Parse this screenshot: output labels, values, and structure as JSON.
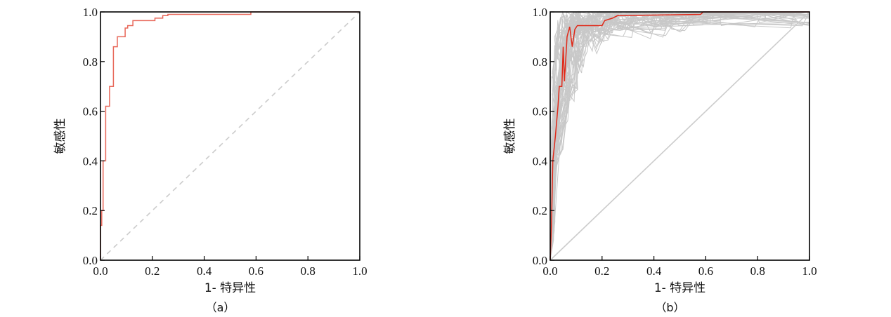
{
  "chart_data": [
    {
      "type": "line",
      "caption": "（a）",
      "xlabel": "1- 特异性",
      "ylabel": "敏感性",
      "xlim": [
        0,
        1
      ],
      "ylim": [
        0,
        1
      ],
      "xticks": [
        "0.0",
        "0.2",
        "0.4",
        "0.6",
        "0.8",
        "1.0"
      ],
      "yticks": [
        "0.0",
        "0.2",
        "0.4",
        "0.6",
        "0.8",
        "1.0"
      ],
      "grid": false,
      "legend": "none",
      "colors": {
        "roc": "#e8685a",
        "diagonal": "#cccccc",
        "axis": "#000000"
      },
      "series": [
        {
          "style": "step",
          "x": [
            0.0,
            0.0,
            0.005,
            0.005,
            0.01,
            0.01,
            0.02,
            0.02,
            0.035,
            0.035,
            0.05,
            0.05,
            0.065,
            0.065,
            0.095,
            0.095,
            0.105,
            0.105,
            0.125,
            0.125,
            0.21,
            0.21,
            0.24,
            0.24,
            0.26,
            0.26,
            0.58,
            0.58,
            1.0
          ],
          "y": [
            0.0,
            0.14,
            0.14,
            0.2,
            0.2,
            0.4,
            0.4,
            0.62,
            0.62,
            0.7,
            0.7,
            0.86,
            0.86,
            0.9,
            0.9,
            0.935,
            0.935,
            0.945,
            0.945,
            0.965,
            0.965,
            0.975,
            0.975,
            0.985,
            0.985,
            0.99,
            0.99,
            1.0,
            1.0
          ]
        },
        {
          "style": "dashed",
          "x": [
            0,
            1
          ],
          "y": [
            0,
            1
          ]
        }
      ]
    },
    {
      "type": "line",
      "caption": "（b）",
      "xlabel": "1- 特异性",
      "ylabel": "敏感性",
      "xlim": [
        0,
        1
      ],
      "ylim": [
        0,
        1
      ],
      "xticks": [
        "0.0",
        "0.2",
        "0.4",
        "0.6",
        "0.8",
        "1.0"
      ],
      "yticks": [
        "0.0",
        "0.2",
        "0.4",
        "0.6",
        "0.8",
        "1.0"
      ],
      "grid": false,
      "legend": "none",
      "colors": {
        "roc": "#e02a1a",
        "bootstrap": "#c8c8c8",
        "diagonal": "#cccccc",
        "axis": "#000000"
      },
      "bootstrap_curves": 60,
      "series": [
        {
          "style": "line",
          "x": [
            0.0,
            0.005,
            0.01,
            0.02,
            0.03,
            0.035,
            0.045,
            0.05,
            0.055,
            0.065,
            0.075,
            0.085,
            0.095,
            0.105,
            0.125,
            0.2,
            0.21,
            0.24,
            0.26,
            0.58,
            0.59,
            1.0
          ],
          "y": [
            0.0,
            0.14,
            0.4,
            0.5,
            0.62,
            0.7,
            0.7,
            0.86,
            0.72,
            0.9,
            0.94,
            0.86,
            0.93,
            0.945,
            0.945,
            0.945,
            0.965,
            0.975,
            0.985,
            0.99,
            1.0,
            1.0
          ]
        },
        {
          "style": "solid",
          "x": [
            0,
            1
          ],
          "y": [
            0,
            1
          ]
        }
      ]
    }
  ]
}
